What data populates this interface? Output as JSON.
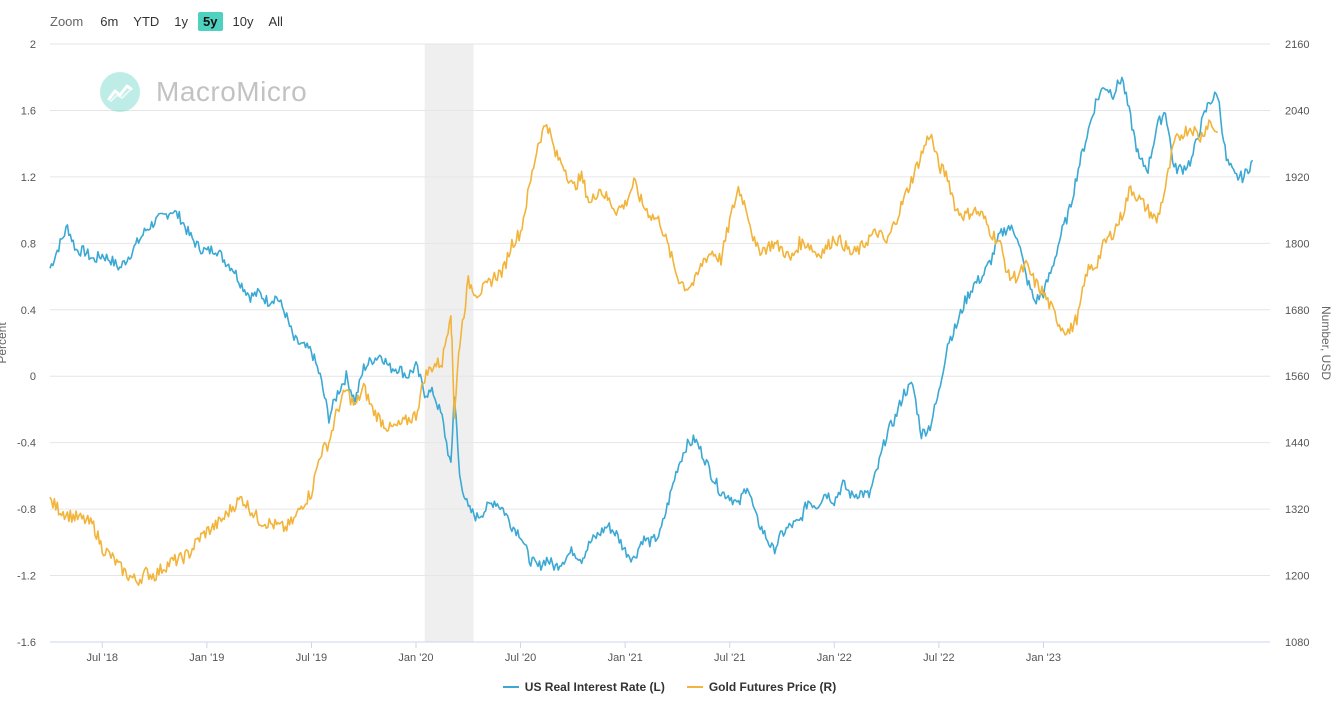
{
  "zoom": {
    "label": "Zoom",
    "options": [
      "6m",
      "YTD",
      "1y",
      "5y",
      "10y",
      "All"
    ],
    "active": "5y"
  },
  "watermark": {
    "brand": "MacroMicro"
  },
  "colors": {
    "rate": "#3ba9d4",
    "gold": "#f2b43a",
    "recession": "#efefef",
    "grid": "#e6e6e6"
  },
  "chart_data": {
    "type": "line",
    "title": "",
    "x_range": [
      "2018-04",
      "2023-04"
    ],
    "x_ticks": [
      "Jul '18",
      "Jan '19",
      "Jul '19",
      "Jan '20",
      "Jul '20",
      "Jan '21",
      "Jul '21",
      "Jan '22",
      "Jul '22",
      "Jan '23"
    ],
    "recession_band": {
      "start": 21.5,
      "end": 24.3
    },
    "left_axis": {
      "label": "Percent",
      "ticks": [
        "2",
        "1.6",
        "1.2",
        "0.8",
        "0.4",
        "0",
        "-0.4",
        "-0.8",
        "-1.2",
        "-1.6"
      ],
      "min": -1.6,
      "max": 2.0
    },
    "right_axis": {
      "label": "Number, USD",
      "ticks": [
        "2160",
        "2040",
        "1920",
        "1800",
        "1680",
        "1560",
        "1440",
        "1320",
        "1200",
        "1080"
      ],
      "min": 1080,
      "max": 2160
    },
    "month_offset_start": 0,
    "series": [
      {
        "name": "US Real Interest Rate (L)",
        "axis": "left",
        "points": [
          [
            0,
            0.65
          ],
          [
            0.5,
            0.78
          ],
          [
            1,
            0.9
          ],
          [
            1.5,
            0.76
          ],
          [
            2,
            0.75
          ],
          [
            2.5,
            0.7
          ],
          [
            3,
            0.73
          ],
          [
            3.5,
            0.7
          ],
          [
            4,
            0.65
          ],
          [
            4.5,
            0.72
          ],
          [
            5,
            0.8
          ],
          [
            5.5,
            0.88
          ],
          [
            6,
            0.93
          ],
          [
            6.5,
            0.96
          ],
          [
            7,
            1.0
          ],
          [
            7.5,
            0.95
          ],
          [
            8,
            0.85
          ],
          [
            8.5,
            0.78
          ],
          [
            9,
            0.75
          ],
          [
            9.5,
            0.77
          ],
          [
            10,
            0.7
          ],
          [
            10.5,
            0.65
          ],
          [
            11,
            0.55
          ],
          [
            11.5,
            0.48
          ],
          [
            12,
            0.5
          ],
          [
            12.5,
            0.45
          ],
          [
            13,
            0.48
          ],
          [
            13.5,
            0.38
          ],
          [
            14,
            0.22
          ],
          [
            14.5,
            0.18
          ],
          [
            15,
            0.15
          ],
          [
            15.5,
            0.0
          ],
          [
            16,
            -0.25
          ],
          [
            16.5,
            -0.1
          ],
          [
            17,
            0.0
          ],
          [
            17.5,
            -0.15
          ],
          [
            18,
            0.05
          ],
          [
            18.5,
            0.1
          ],
          [
            19,
            0.13
          ],
          [
            19.5,
            0.05
          ],
          [
            20,
            0.05
          ],
          [
            20.5,
            0.0
          ],
          [
            21,
            0.06
          ],
          [
            21.5,
            -0.1
          ],
          [
            22,
            -0.1
          ],
          [
            22.5,
            -0.25
          ],
          [
            23,
            -0.55
          ],
          [
            23.2,
            -0.1
          ],
          [
            23.5,
            -0.6
          ],
          [
            24,
            -0.8
          ],
          [
            24.5,
            -0.85
          ],
          [
            25,
            -0.8
          ],
          [
            25.5,
            -0.75
          ],
          [
            26,
            -0.8
          ],
          [
            26.5,
            -0.9
          ],
          [
            27,
            -0.95
          ],
          [
            27.5,
            -1.1
          ],
          [
            28,
            -1.15
          ],
          [
            28.5,
            -1.1
          ],
          [
            29,
            -1.15
          ],
          [
            29.5,
            -1.1
          ],
          [
            30,
            -1.05
          ],
          [
            30.5,
            -1.1
          ],
          [
            31,
            -1.0
          ],
          [
            31.5,
            -0.95
          ],
          [
            32,
            -0.9
          ],
          [
            32.5,
            -0.95
          ],
          [
            33,
            -1.05
          ],
          [
            33.5,
            -1.1
          ],
          [
            34,
            -0.98
          ],
          [
            34.5,
            -1.0
          ],
          [
            35,
            -0.95
          ],
          [
            35.5,
            -0.75
          ],
          [
            36,
            -0.55
          ],
          [
            36.5,
            -0.42
          ],
          [
            37,
            -0.38
          ],
          [
            37.5,
            -0.48
          ],
          [
            38,
            -0.6
          ],
          [
            38.5,
            -0.7
          ],
          [
            39,
            -0.72
          ],
          [
            39.5,
            -0.78
          ],
          [
            40,
            -0.65
          ],
          [
            40.5,
            -0.85
          ],
          [
            41,
            -0.95
          ],
          [
            41.5,
            -1.05
          ],
          [
            42,
            -0.95
          ],
          [
            42.5,
            -0.9
          ],
          [
            43,
            -0.88
          ],
          [
            43.5,
            -0.75
          ],
          [
            44,
            -0.78
          ],
          [
            44.5,
            -0.7
          ],
          [
            45,
            -0.75
          ],
          [
            45.5,
            -0.65
          ],
          [
            46,
            -0.72
          ],
          [
            46.5,
            -0.7
          ],
          [
            47,
            -0.72
          ],
          [
            47.5,
            -0.55
          ],
          [
            48,
            -0.35
          ],
          [
            48.5,
            -0.25
          ],
          [
            49,
            -0.1
          ],
          [
            49.5,
            -0.05
          ],
          [
            50,
            -0.35
          ],
          [
            50.5,
            -0.3
          ],
          [
            51,
            -0.1
          ],
          [
            51.5,
            0.2
          ],
          [
            52,
            0.3
          ],
          [
            52.5,
            0.45
          ],
          [
            53,
            0.55
          ],
          [
            53.5,
            0.6
          ],
          [
            54,
            0.7
          ],
          [
            54.5,
            0.85
          ],
          [
            55,
            0.9
          ],
          [
            55.5,
            0.85
          ],
          [
            56,
            0.6
          ],
          [
            56.5,
            0.45
          ],
          [
            57,
            0.5
          ],
          [
            57.5,
            0.65
          ],
          [
            58,
            0.85
          ],
          [
            58.5,
            1.0
          ],
          [
            59,
            1.25
          ],
          [
            59.5,
            1.45
          ],
          [
            60,
            1.65
          ],
          [
            60.5,
            1.75
          ],
          [
            61,
            1.7
          ],
          [
            61.5,
            1.8
          ],
          [
            62,
            1.55
          ],
          [
            62.5,
            1.3
          ],
          [
            63,
            1.25
          ],
          [
            63.5,
            1.5
          ],
          [
            64,
            1.6
          ],
          [
            64.5,
            1.25
          ],
          [
            65,
            1.25
          ],
          [
            65.5,
            1.3
          ],
          [
            66,
            1.5
          ],
          [
            66.5,
            1.65
          ],
          [
            67,
            1.7
          ],
          [
            67.5,
            1.3
          ],
          [
            68,
            1.2
          ],
          [
            68.5,
            1.2
          ],
          [
            69,
            1.3
          ]
        ]
      },
      {
        "name": "Gold Futures Price (R)",
        "axis": "right",
        "points": [
          [
            0,
            1335
          ],
          [
            0.5,
            1320
          ],
          [
            1,
            1310
          ],
          [
            1.5,
            1305
          ],
          [
            2,
            1300
          ],
          [
            2.5,
            1290
          ],
          [
            3,
            1250
          ],
          [
            3.5,
            1235
          ],
          [
            4,
            1215
          ],
          [
            4.5,
            1200
          ],
          [
            5,
            1190
          ],
          [
            5.5,
            1205
          ],
          [
            6,
            1200
          ],
          [
            6.5,
            1215
          ],
          [
            7,
            1225
          ],
          [
            7.5,
            1230
          ],
          [
            8,
            1240
          ],
          [
            8.5,
            1265
          ],
          [
            9,
            1280
          ],
          [
            9.5,
            1290
          ],
          [
            10,
            1305
          ],
          [
            10.5,
            1325
          ],
          [
            11,
            1340
          ],
          [
            11.5,
            1320
          ],
          [
            12,
            1300
          ],
          [
            12.5,
            1295
          ],
          [
            13,
            1290
          ],
          [
            13.5,
            1285
          ],
          [
            14,
            1300
          ],
          [
            14.5,
            1330
          ],
          [
            15,
            1350
          ],
          [
            15.5,
            1420
          ],
          [
            16,
            1440
          ],
          [
            16.5,
            1500
          ],
          [
            17,
            1535
          ],
          [
            17.5,
            1505
          ],
          [
            18,
            1540
          ],
          [
            18.5,
            1500
          ],
          [
            19,
            1480
          ],
          [
            19.5,
            1465
          ],
          [
            20,
            1470
          ],
          [
            20.5,
            1480
          ],
          [
            21,
            1490
          ],
          [
            21.5,
            1560
          ],
          [
            22,
            1580
          ],
          [
            22.5,
            1585
          ],
          [
            23,
            1680
          ],
          [
            23.2,
            1490
          ],
          [
            23.5,
            1620
          ],
          [
            24,
            1730
          ],
          [
            24.5,
            1710
          ],
          [
            25,
            1720
          ],
          [
            25.5,
            1740
          ],
          [
            26,
            1750
          ],
          [
            26.5,
            1800
          ],
          [
            27,
            1820
          ],
          [
            27.5,
            1900
          ],
          [
            28,
            1980
          ],
          [
            28.5,
            2020
          ],
          [
            29,
            1960
          ],
          [
            29.5,
            1940
          ],
          [
            30,
            1900
          ],
          [
            30.5,
            1920
          ],
          [
            31,
            1870
          ],
          [
            31.5,
            1900
          ],
          [
            32,
            1880
          ],
          [
            32.5,
            1860
          ],
          [
            33,
            1870
          ],
          [
            33.5,
            1910
          ],
          [
            34,
            1870
          ],
          [
            34.5,
            1850
          ],
          [
            35,
            1840
          ],
          [
            35.5,
            1790
          ],
          [
            36,
            1740
          ],
          [
            36.5,
            1720
          ],
          [
            37,
            1730
          ],
          [
            37.5,
            1770
          ],
          [
            38,
            1785
          ],
          [
            38.5,
            1770
          ],
          [
            39,
            1840
          ],
          [
            39.5,
            1900
          ],
          [
            40,
            1860
          ],
          [
            40.5,
            1790
          ],
          [
            41,
            1790
          ],
          [
            41.5,
            1800
          ],
          [
            42,
            1790
          ],
          [
            42.5,
            1770
          ],
          [
            43,
            1800
          ],
          [
            43.5,
            1800
          ],
          [
            44,
            1780
          ],
          [
            44.5,
            1790
          ],
          [
            45,
            1810
          ],
          [
            45.5,
            1800
          ],
          [
            46,
            1780
          ],
          [
            46.5,
            1790
          ],
          [
            47,
            1810
          ],
          [
            47.5,
            1820
          ],
          [
            48,
            1800
          ],
          [
            48.5,
            1840
          ],
          [
            49,
            1880
          ],
          [
            49.5,
            1920
          ],
          [
            50,
            1960
          ],
          [
            50.5,
            2000
          ],
          [
            51,
            1940
          ],
          [
            51.5,
            1920
          ],
          [
            52,
            1860
          ],
          [
            52.5,
            1850
          ],
          [
            53,
            1860
          ],
          [
            53.5,
            1850
          ],
          [
            54,
            1820
          ],
          [
            54.5,
            1800
          ],
          [
            55,
            1740
          ],
          [
            55.5,
            1740
          ],
          [
            56,
            1760
          ],
          [
            56.5,
            1730
          ],
          [
            57,
            1710
          ],
          [
            57.5,
            1680
          ],
          [
            58,
            1650
          ],
          [
            58.5,
            1640
          ],
          [
            59,
            1670
          ],
          [
            59.5,
            1750
          ],
          [
            60,
            1760
          ],
          [
            60.5,
            1800
          ],
          [
            61,
            1820
          ],
          [
            61.5,
            1850
          ],
          [
            62,
            1900
          ],
          [
            62.5,
            1880
          ],
          [
            63,
            1860
          ],
          [
            63.5,
            1840
          ],
          [
            64,
            1900
          ],
          [
            64.5,
            1980
          ],
          [
            65,
            2000
          ],
          [
            65.5,
            2010
          ],
          [
            66,
            1990
          ],
          [
            66.5,
            2020
          ],
          [
            67,
            2000
          ]
        ]
      }
    ]
  },
  "legend": {
    "items": [
      "US Real Interest Rate (L)",
      "Gold Futures Price (R)"
    ]
  }
}
